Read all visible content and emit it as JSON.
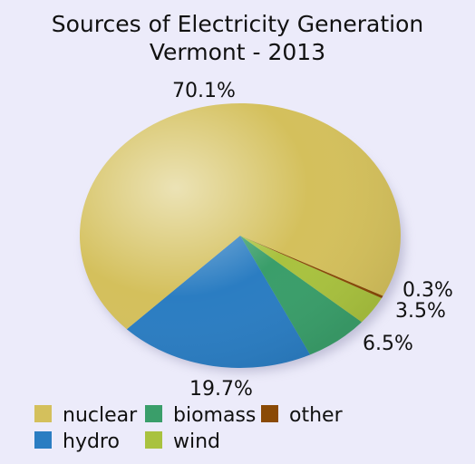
{
  "chart_data": {
    "type": "pie",
    "title": "Sources of Electricity Generation",
    "subtitle": "Vermont - 2013",
    "slices": [
      {
        "name": "nuclear",
        "value": 70.1,
        "label": "70.1%",
        "color": "#d4c05c"
      },
      {
        "name": "hydro",
        "value": 19.7,
        "label": "19.7%",
        "color": "#2b7dc2"
      },
      {
        "name": "biomass",
        "value": 6.5,
        "label": "6.5%",
        "color": "#3a9e6a"
      },
      {
        "name": "wind",
        "value": 3.5,
        "label": "3.5%",
        "color": "#a9c23f"
      },
      {
        "name": "other",
        "value": 0.3,
        "label": "0.3%",
        "color": "#8a4a05"
      }
    ],
    "legend": {
      "placement": "bottom",
      "items": [
        "nuclear",
        "biomass",
        "other",
        "hydro",
        "wind"
      ]
    }
  }
}
